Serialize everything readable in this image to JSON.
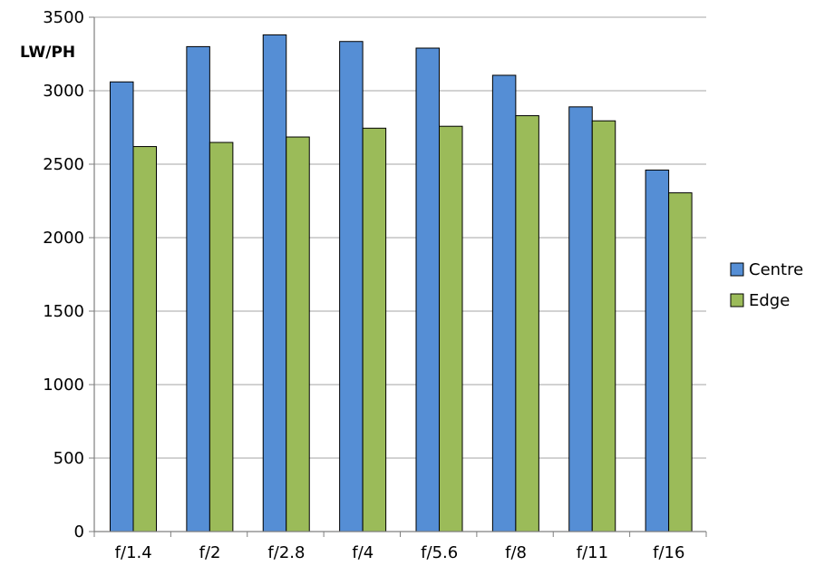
{
  "chart_data": {
    "type": "bar",
    "title": "",
    "xlabel": "",
    "ylabel": "LW/PH",
    "ylim": [
      0,
      3500
    ],
    "yticks": [
      0,
      500,
      1000,
      1500,
      2000,
      2500,
      3000,
      3500
    ],
    "grid": true,
    "legend_position": "right",
    "categories": [
      "f/1.4",
      "f/2",
      "f/2.8",
      "f/4",
      "f/5.6",
      "f/8",
      "f/11",
      "f/16"
    ],
    "series": [
      {
        "name": "Centre",
        "color": "#558ED5",
        "values": [
          3060,
          3300,
          3380,
          3335,
          3290,
          3105,
          2890,
          2460
        ]
      },
      {
        "name": "Edge",
        "color": "#9BBB59",
        "values": [
          2620,
          2648,
          2685,
          2745,
          2758,
          2830,
          2795,
          2305
        ]
      }
    ]
  }
}
